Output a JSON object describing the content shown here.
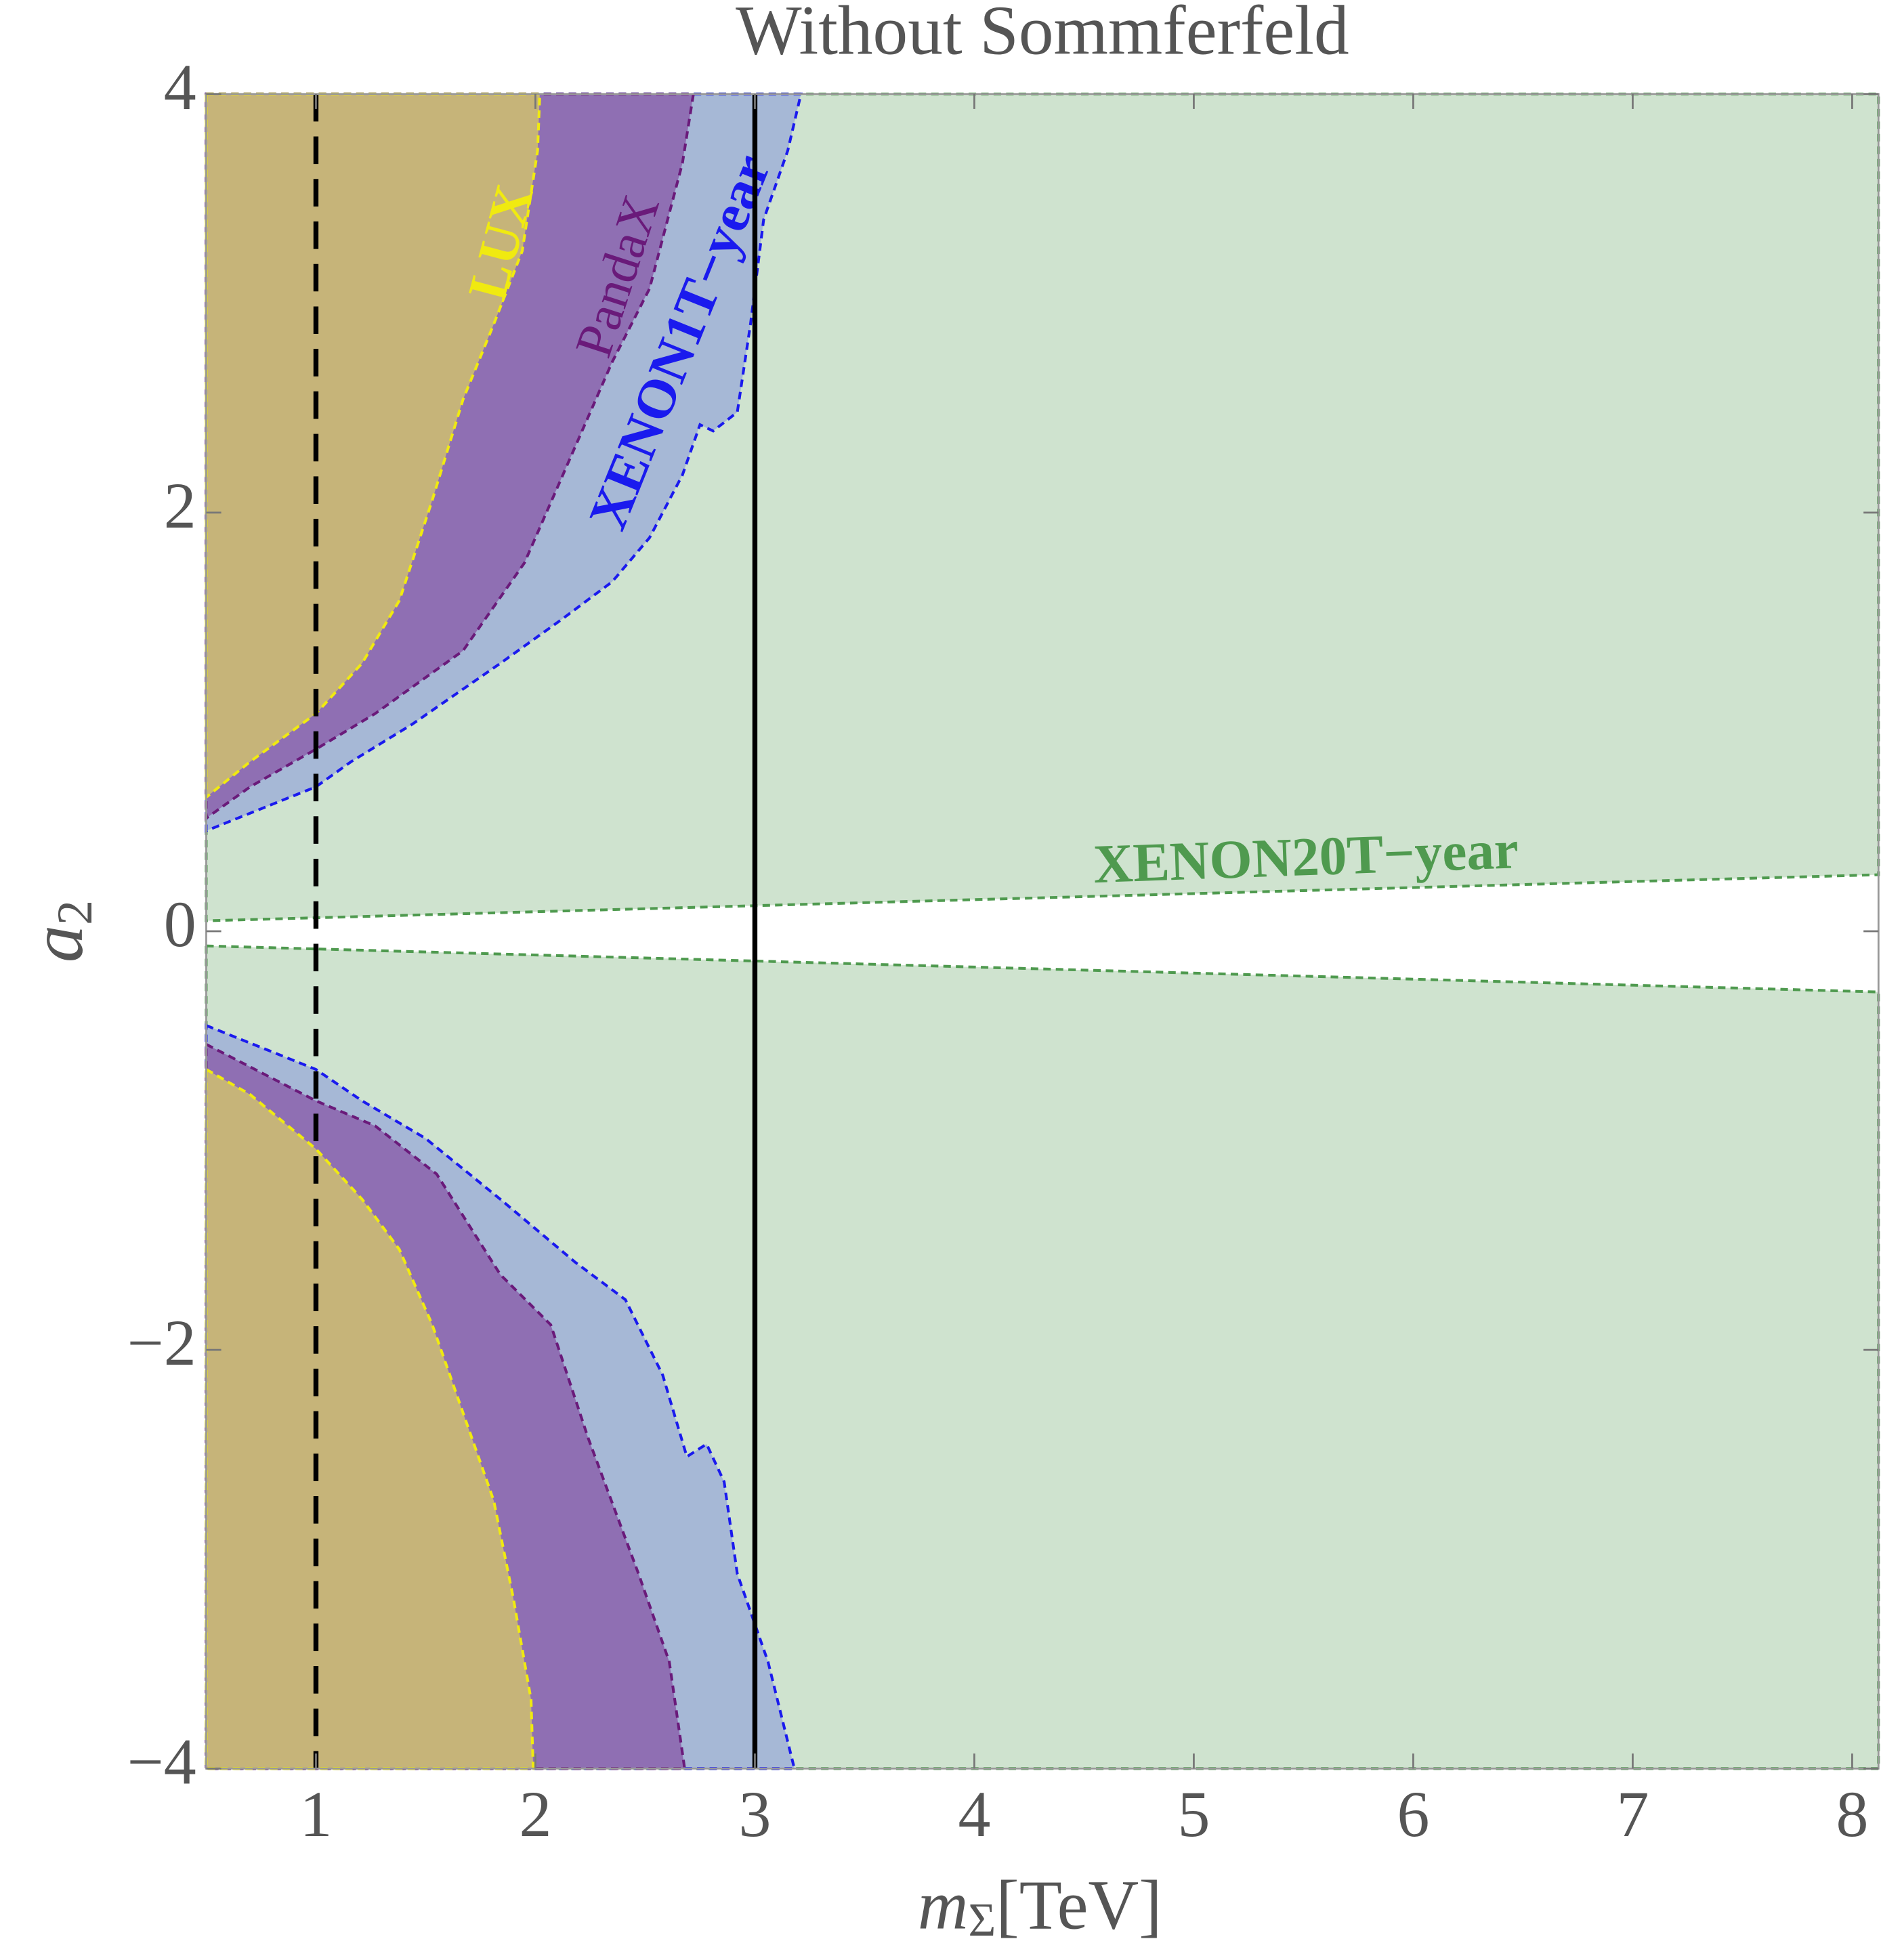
{
  "chart_data": {
    "type": "region",
    "title": "Without Sommferfeld",
    "x_label": {
      "var": "m",
      "sub": "Σ",
      "unit": "[TeV]"
    },
    "y_label": {
      "var": "a",
      "sub": "2"
    },
    "xlim": [
      0.5,
      8.12
    ],
    "ylim": [
      -4,
      4
    ],
    "xticks": [
      1,
      2,
      3,
      4,
      5,
      6,
      7,
      8
    ],
    "yticks": [
      {
        "value": -4,
        "label": "−4"
      },
      {
        "value": -2,
        "label": "−2"
      },
      0,
      2,
      4
    ],
    "vlines": [
      {
        "x": 1,
        "style": "dashed"
      },
      {
        "x": 3,
        "style": "solid"
      }
    ],
    "series": [
      {
        "name": "XENON20T−year",
        "color": "#4f9a4f",
        "fill": "#cfe3cf",
        "x": [
          0.5,
          8.12,
          8.12,
          0.5,
          null,
          0.5,
          8.12,
          8.12,
          0.5
        ],
        "y": [
          4,
          4,
          0.27,
          0.05,
          null,
          -0.07,
          -0.29,
          -4,
          -4
        ]
      },
      {
        "name": "XENON1T−year",
        "color": "#1a1aee",
        "fill": "#a6b8d6",
        "x": [
          0.5,
          3.21,
          3.15,
          3.04,
          2.98,
          2.92,
          2.81,
          2.75,
          2.67,
          2.52,
          2.35,
          2.12,
          1.84,
          1.44,
          1.16,
          1.0,
          0.5,
          null,
          0.5,
          1.0,
          1.21,
          1.5,
          1.84,
          2.18,
          2.41,
          2.58,
          2.69,
          2.78,
          2.86,
          2.92,
          3.06,
          3.18,
          0.5
        ],
        "y": [
          4,
          4,
          3.73,
          3.4,
          2.9,
          2.48,
          2.39,
          2.42,
          2.18,
          1.88,
          1.67,
          1.49,
          1.28,
          0.99,
          0.81,
          0.69,
          0.48,
          null,
          -0.45,
          -0.66,
          -0.81,
          -0.99,
          -1.28,
          -1.58,
          -1.76,
          -2.12,
          -2.51,
          -2.45,
          -2.63,
          -3.07,
          -3.49,
          -4,
          -4
        ]
      },
      {
        "name": "PandaX",
        "color": "#6a1a7a",
        "fill": "#8f6fb3",
        "x": [
          0.5,
          2.72,
          2.67,
          2.52,
          2.35,
          2.15,
          1.95,
          1.67,
          1.27,
          1.0,
          0.7,
          0.5,
          null,
          0.5,
          1.0,
          1.27,
          1.55,
          1.84,
          2.07,
          2.24,
          2.47,
          2.61,
          2.68,
          0.5
        ],
        "y": [
          4,
          4,
          3.67,
          3.07,
          2.72,
          2.24,
          1.76,
          1.34,
          1.04,
          0.87,
          0.69,
          0.54,
          null,
          -0.54,
          -0.81,
          -0.93,
          -1.16,
          -1.64,
          -1.88,
          -2.42,
          -3.07,
          -3.49,
          -4,
          -4
        ]
      },
      {
        "name": "LUX",
        "color": "#f0ea10",
        "fill": "#c6b479",
        "x": [
          0.5,
          2.02,
          2.01,
          1.94,
          1.81,
          1.67,
          1.53,
          1.38,
          1.21,
          1.0,
          0.7,
          0.5,
          null,
          0.5,
          0.7,
          1.0,
          1.21,
          1.38,
          1.53,
          1.67,
          1.81,
          1.9,
          1.98,
          1.99,
          0.5
        ],
        "y": [
          4,
          4,
          3.73,
          3.25,
          2.9,
          2.54,
          2.06,
          1.58,
          1.28,
          1.04,
          0.81,
          0.64,
          null,
          -0.66,
          -0.78,
          -1.04,
          -1.28,
          -1.52,
          -1.88,
          -2.3,
          -2.72,
          -3.19,
          -3.67,
          -4,
          -4
        ]
      }
    ]
  }
}
